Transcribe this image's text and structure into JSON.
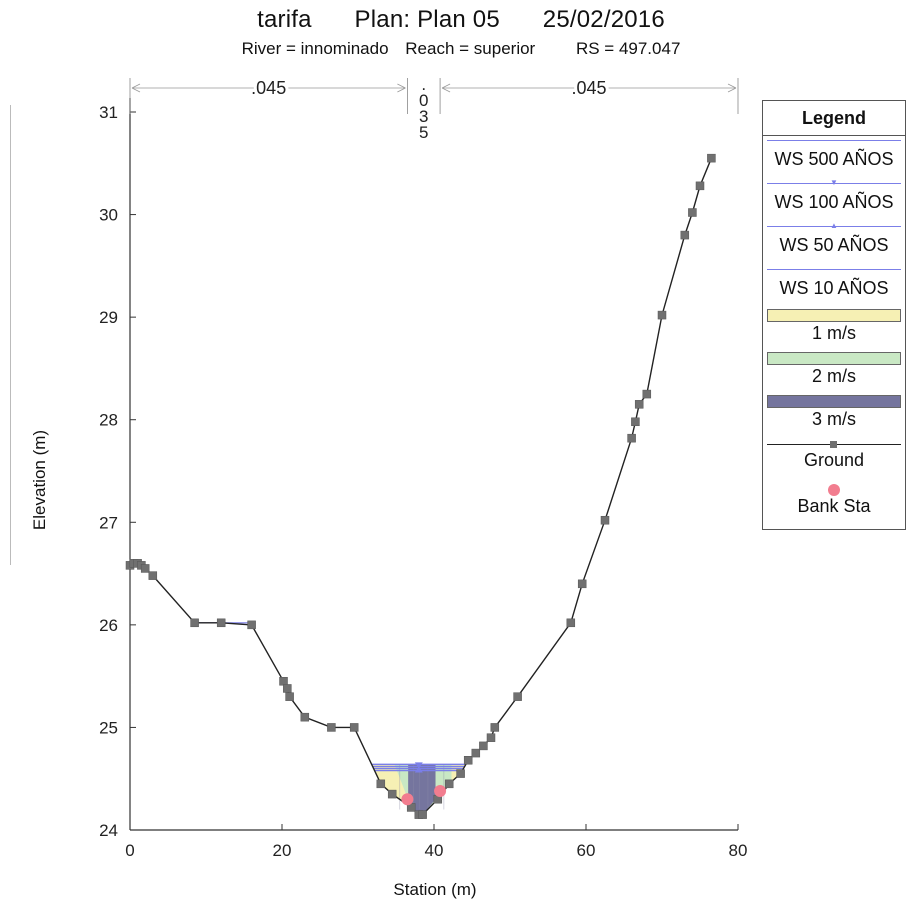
{
  "title": {
    "project": "tarifa",
    "plan": "Plan: Plan 05",
    "date": "25/02/2016",
    "river": "River = innominado",
    "reach": "Reach = superior",
    "rs": "RS = 497.047"
  },
  "manning": {
    "left": ".045",
    "channel": [
      ".",
      "0",
      "3",
      "5"
    ],
    "right": ".045"
  },
  "legend": {
    "title": "Legend",
    "items": [
      {
        "label": "WS 500 AÑOS",
        "kind": "ws",
        "color": "#7b7fe8",
        "marker": "none"
      },
      {
        "label": "WS 100 AÑOS",
        "kind": "ws",
        "color": "#7b7fe8",
        "marker": "tri-down"
      },
      {
        "label": "WS 50 AÑOS",
        "kind": "ws",
        "color": "#7b7fe8",
        "marker": "tri-up"
      },
      {
        "label": "WS 10 AÑOS",
        "kind": "ws",
        "color": "#7b7fe8",
        "marker": "none"
      },
      {
        "label": "1 m/s",
        "kind": "fill",
        "color": "#f6f0b4"
      },
      {
        "label": "2 m/s",
        "kind": "fill",
        "color": "#c9e8c4"
      },
      {
        "label": "3 m/s",
        "kind": "fill",
        "color": "#75759e"
      },
      {
        "label": "Ground",
        "kind": "ground",
        "color": "#222222"
      },
      {
        "label": "Bank Sta",
        "kind": "bank",
        "color": "#f27d8f"
      }
    ]
  },
  "chart_data": {
    "type": "line",
    "xlabel": "Station (m)",
    "ylabel": "Elevation (m)",
    "xlim": [
      0,
      80
    ],
    "ylim": [
      24,
      31
    ],
    "xticks": [
      0,
      20,
      40,
      60,
      80
    ],
    "yticks": [
      24,
      25,
      26,
      27,
      28,
      29,
      30,
      31
    ],
    "ground": {
      "x": [
        0,
        0.5,
        1,
        1.5,
        2,
        3,
        8.5,
        12,
        16,
        20.2,
        20.7,
        21,
        23,
        26.5,
        29.5,
        33,
        34.5,
        37,
        38,
        38.5,
        40.5,
        42,
        43.5,
        44.5,
        45.5,
        46.5,
        47.5,
        48,
        51,
        58,
        59.5,
        62.5,
        66,
        66.5,
        67,
        68,
        70,
        73,
        74,
        75,
        76.5
      ],
      "y": [
        26.58,
        26.6,
        26.6,
        26.58,
        26.55,
        26.48,
        26.02,
        26.02,
        26.0,
        25.45,
        25.38,
        25.3,
        25.1,
        25.0,
        25.0,
        24.45,
        24.35,
        24.22,
        24.15,
        24.15,
        24.3,
        24.45,
        24.55,
        24.68,
        24.75,
        24.82,
        24.9,
        25.0,
        25.3,
        26.02,
        26.4,
        27.02,
        27.82,
        27.98,
        28.15,
        28.25,
        29.02,
        29.8,
        30.02,
        30.28,
        30.55
      ]
    },
    "levee_section": {
      "x": [
        8.5,
        16
      ],
      "y": 26.02
    },
    "bank_stations": [
      {
        "x": 36.5,
        "y": 24.3
      },
      {
        "x": 40.8,
        "y": 24.38
      }
    ],
    "water_surfaces": [
      {
        "name": "WS 500 AÑOS",
        "elevation": 24.64
      },
      {
        "name": "WS 100 AÑOS",
        "elevation": 24.62
      },
      {
        "name": "WS 50 AÑOS",
        "elevation": 24.6
      },
      {
        "name": "WS 10 AÑOS",
        "elevation": 24.58
      }
    ],
    "manning_breaks": [
      36.5,
      40.8
    ]
  }
}
